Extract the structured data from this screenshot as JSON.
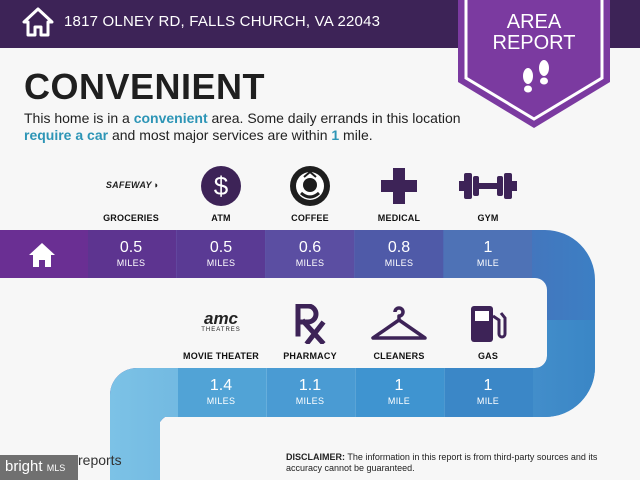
{
  "header": {
    "address": "1817 OLNEY RD, FALLS CHURCH, VA 22043"
  },
  "badge": {
    "line1": "AREA",
    "line2": "REPORT"
  },
  "headline": "CONVENIENT",
  "description": {
    "p1": "This home is in a ",
    "h1": "convenient",
    "p2": " area. Some daily errands in this location ",
    "h2": "require a car",
    "p3": " and most major services are within ",
    "h3": "1",
    "p4": " mile."
  },
  "row1": [
    {
      "label": "GROCERIES",
      "value": "0.5",
      "unit": "MILES",
      "brand": "SAFEWAY",
      "icon": "safeway-logo-icon"
    },
    {
      "label": "ATM",
      "value": "0.5",
      "unit": "MILES",
      "icon": "dollar-icon"
    },
    {
      "label": "COFFEE",
      "value": "0.6",
      "unit": "MILES",
      "icon": "starbucks-logo-icon"
    },
    {
      "label": "MEDICAL",
      "value": "0.8",
      "unit": "MILES",
      "icon": "medical-cross-icon"
    },
    {
      "label": "GYM",
      "value": "1",
      "unit": "MILE",
      "icon": "dumbbell-icon"
    }
  ],
  "row2": [
    {
      "label": "MOVIE THEATER",
      "value": "1.4",
      "unit": "MILES",
      "brand": "amc",
      "brand_sub": "THEATRES",
      "icon": "amc-logo-icon"
    },
    {
      "label": "PHARMACY",
      "value": "1.1",
      "unit": "MILES",
      "icon": "rx-icon"
    },
    {
      "label": "CLEANERS",
      "value": "1",
      "unit": "MILE",
      "icon": "hanger-icon"
    },
    {
      "label": "GAS",
      "value": "1",
      "unit": "MILE",
      "icon": "gas-pump-icon"
    }
  ],
  "colors": {
    "header_bg": "#3d2357",
    "badge": "#7b3aa0",
    "highlight": "#2d95b6"
  },
  "footer": {
    "logo_text": "reports",
    "disclaimer_label": "DISCLAIMER:",
    "disclaimer_text": " The information in this report is from third-party sources and its accuracy cannot be guaranteed.",
    "watermark": "bright",
    "watermark_sub": "MLS"
  }
}
